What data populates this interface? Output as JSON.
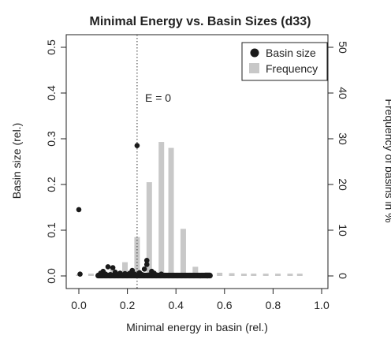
{
  "chart_data": {
    "type": "bar+scatter",
    "title": "Minimal Energy vs. Basin Sizes (d33)",
    "xlabel": "Minimal energy in basin (rel.)",
    "ylabel": "Basin size (rel.)",
    "y2label": "Frequency of basins in %",
    "xlim": [
      0.0,
      1.0
    ],
    "ylim": [
      0.0,
      0.5
    ],
    "y2lim": [
      0,
      50
    ],
    "x_ticks": [
      "0.0",
      "0.2",
      "0.4",
      "0.6",
      "0.8",
      "1.0"
    ],
    "y_ticks": [
      "0.0",
      "0.1",
      "0.2",
      "0.3",
      "0.4",
      "0.5"
    ],
    "y2_ticks": [
      "0",
      "10",
      "20",
      "30",
      "40",
      "50"
    ],
    "vline": {
      "x": 0.24,
      "label": "E = 0"
    },
    "legend": {
      "position": "top-right",
      "items": [
        {
          "label": "Basin size",
          "symbol": "point",
          "color": "#1a1a1a"
        },
        {
          "label": "Frequency",
          "symbol": "bar",
          "color": "#c8c8c8"
        }
      ]
    },
    "series": [
      {
        "name": "Frequency",
        "kind": "bar",
        "axis": "y2",
        "color": "#c8c8c8",
        "x": [
          0.0,
          0.05,
          0.09,
          0.14,
          0.19,
          0.24,
          0.29,
          0.34,
          0.38,
          0.43,
          0.48,
          0.53,
          0.58,
          0.63,
          0.68,
          0.72,
          0.77,
          0.82,
          0.87,
          0.91
        ],
        "values": [
          0.3,
          0.5,
          0.8,
          1.5,
          3.0,
          8.5,
          20.5,
          29.3,
          28.0,
          10.3,
          2.0,
          0.8,
          0.7,
          0.6,
          0.5,
          0.5,
          0.5,
          0.5,
          0.5,
          0.5
        ]
      },
      {
        "name": "Basin size",
        "kind": "scatter",
        "axis": "y",
        "color": "#1a1a1a",
        "points": [
          [
            0.0,
            0.145
          ],
          [
            0.005,
            0.004
          ],
          [
            0.24,
            0.285
          ],
          [
            0.28,
            0.034
          ],
          [
            0.28,
            0.025
          ],
          [
            0.12,
            0.02
          ],
          [
            0.14,
            0.018
          ],
          [
            0.1,
            0.01
          ],
          [
            0.09,
            0.006
          ],
          [
            0.27,
            0.015
          ],
          [
            0.3,
            0.01
          ],
          [
            0.22,
            0.012
          ],
          [
            0.11,
            0.004
          ],
          [
            0.13,
            0.003
          ],
          [
            0.16,
            0.002
          ],
          [
            0.18,
            0.002
          ],
          [
            0.2,
            0.003
          ],
          [
            0.23,
            0.004
          ],
          [
            0.26,
            0.003
          ],
          [
            0.29,
            0.002
          ],
          [
            0.32,
            0.002
          ],
          [
            0.35,
            0.001
          ],
          [
            0.38,
            0.001
          ],
          [
            0.41,
            0.001
          ],
          [
            0.44,
            0.0005
          ],
          [
            0.47,
            0.0005
          ],
          [
            0.5,
            0.0003
          ],
          [
            0.53,
            0.0002
          ],
          [
            0.15,
            0.008
          ],
          [
            0.25,
            0.007
          ],
          [
            0.31,
            0.006
          ],
          [
            0.34,
            0.004
          ],
          [
            0.21,
            0.006
          ],
          [
            0.19,
            0.005
          ],
          [
            0.17,
            0.006
          ]
        ],
        "dense_band": {
          "x_from": 0.08,
          "x_to": 0.54,
          "y": 0.0008
        }
      }
    ]
  }
}
